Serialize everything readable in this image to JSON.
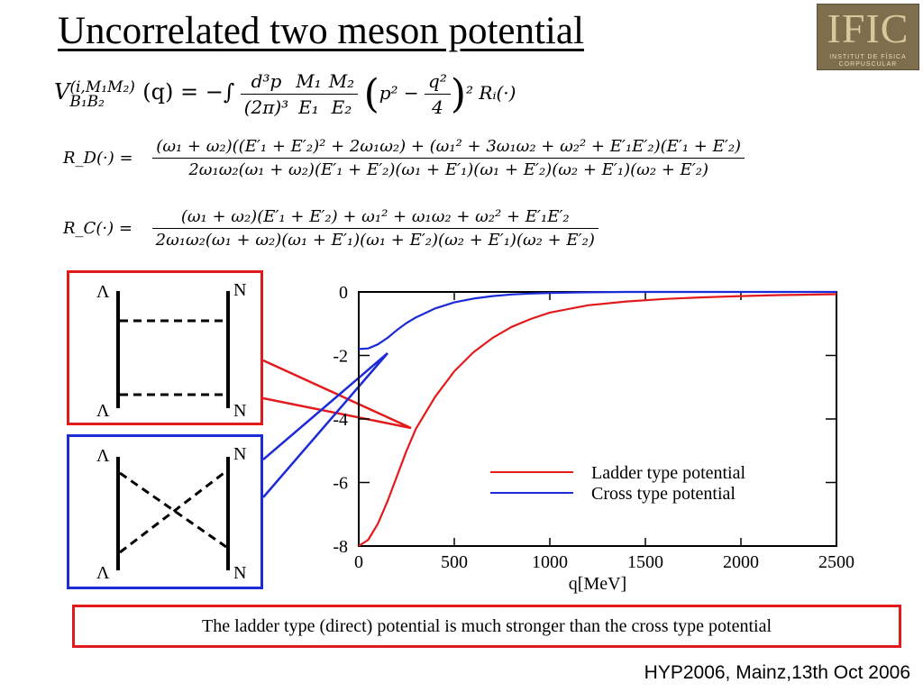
{
  "slide": {
    "title": "Uncorrelated two meson potential",
    "logo_text": "IFIC",
    "logo_sub1": "INSTITUT DE FÍSICA",
    "logo_sub2": "CORPUSCULAR",
    "caption": "The ladder type (direct) potential is much stronger than the cross type potential",
    "footer": "HYP2006, Mainz,13th Oct 2006"
  },
  "equations": {
    "eq1_lhs": "V",
    "eq1_sup": "(i,M₁M₂)",
    "eq1_sub": "B₁B₂",
    "eq1_arg": "(q) = −∫",
    "eq1_f1_num": "d³p",
    "eq1_f1_den": "(2π)³",
    "eq1_f2_num": "M₁",
    "eq1_f2_den": "E₁",
    "eq1_f3_num": "M₂",
    "eq1_f3_den": "E₂",
    "eq1_paren": "p² −",
    "eq1_f4_num": "q²",
    "eq1_f4_den": "4",
    "eq1_tail": "² Rᵢ(·)",
    "rd_lhs": "R_D(·)  =",
    "rd_num": "(ω₁ + ω₂)((E′₁ + E′₂)² + 2ω₁ω₂) + (ω₁² + 3ω₁ω₂ + ω₂² + E′₁E′₂)(E′₁ + E′₂)",
    "rd_den": "2ω₁ω₂(ω₁ + ω₂)(E′₁ + E′₂)(ω₁ + E′₁)(ω₁ + E′₂)(ω₂ + E′₁)(ω₂ + E′₂)",
    "rc_lhs": "R_C(·)  =",
    "rc_num": "(ω₁ + ω₂)(E′₁ + E′₂) + ω₁² + ω₁ω₂ + ω₂² + E′₁E′₂",
    "rc_den": "2ω₁ω₂(ω₁ + ω₂)(ω₁ + E′₁)(ω₁ + E′₂)(ω₂ + E′₁)(ω₂ + E′₂)"
  },
  "diagrams": {
    "ladder": {
      "top_left": "Λ",
      "top_right": "N",
      "bottom_left": "Λ",
      "bottom_right": "N",
      "color": "#e31a1c"
    },
    "cross": {
      "top_left": "Λ",
      "top_right": "N",
      "bottom_left": "Λ",
      "bottom_right": "N",
      "color": "#1c2bd8"
    }
  },
  "chart_data": {
    "type": "line",
    "xlabel": "q[MeV]",
    "ylabel": "",
    "xlim": [
      0,
      2500
    ],
    "ylim": [
      -8,
      0
    ],
    "x_ticks": [
      0,
      500,
      1000,
      1500,
      2000,
      2500
    ],
    "y_ticks": [
      0,
      -2,
      -4,
      -6,
      -8
    ],
    "legend_position": "lower-right",
    "series": [
      {
        "name": "Ladder type potential",
        "color": "#e31a1c",
        "x": [
          0,
          50,
          100,
          150,
          200,
          250,
          300,
          400,
          500,
          600,
          700,
          800,
          900,
          1000,
          1200,
          1400,
          1600,
          1800,
          2000,
          2200,
          2500
        ],
        "y": [
          -8.0,
          -7.8,
          -7.3,
          -6.6,
          -5.8,
          -5.0,
          -4.3,
          -3.3,
          -2.5,
          -1.9,
          -1.45,
          -1.1,
          -0.85,
          -0.65,
          -0.42,
          -0.3,
          -0.22,
          -0.17,
          -0.13,
          -0.1,
          -0.07
        ]
      },
      {
        "name": "Cross type potential",
        "color": "#1c2bd8",
        "x": [
          0,
          50,
          100,
          150,
          200,
          250,
          300,
          400,
          500,
          600,
          700,
          800,
          900,
          1000,
          1200,
          1400,
          1600,
          1800,
          2000,
          2500
        ],
        "y": [
          -1.8,
          -1.78,
          -1.65,
          -1.45,
          -1.2,
          -0.98,
          -0.8,
          -0.52,
          -0.33,
          -0.21,
          -0.13,
          -0.08,
          -0.05,
          -0.03,
          -0.01,
          0.0,
          0.0,
          0.0,
          0.0,
          0.0
        ]
      }
    ]
  }
}
